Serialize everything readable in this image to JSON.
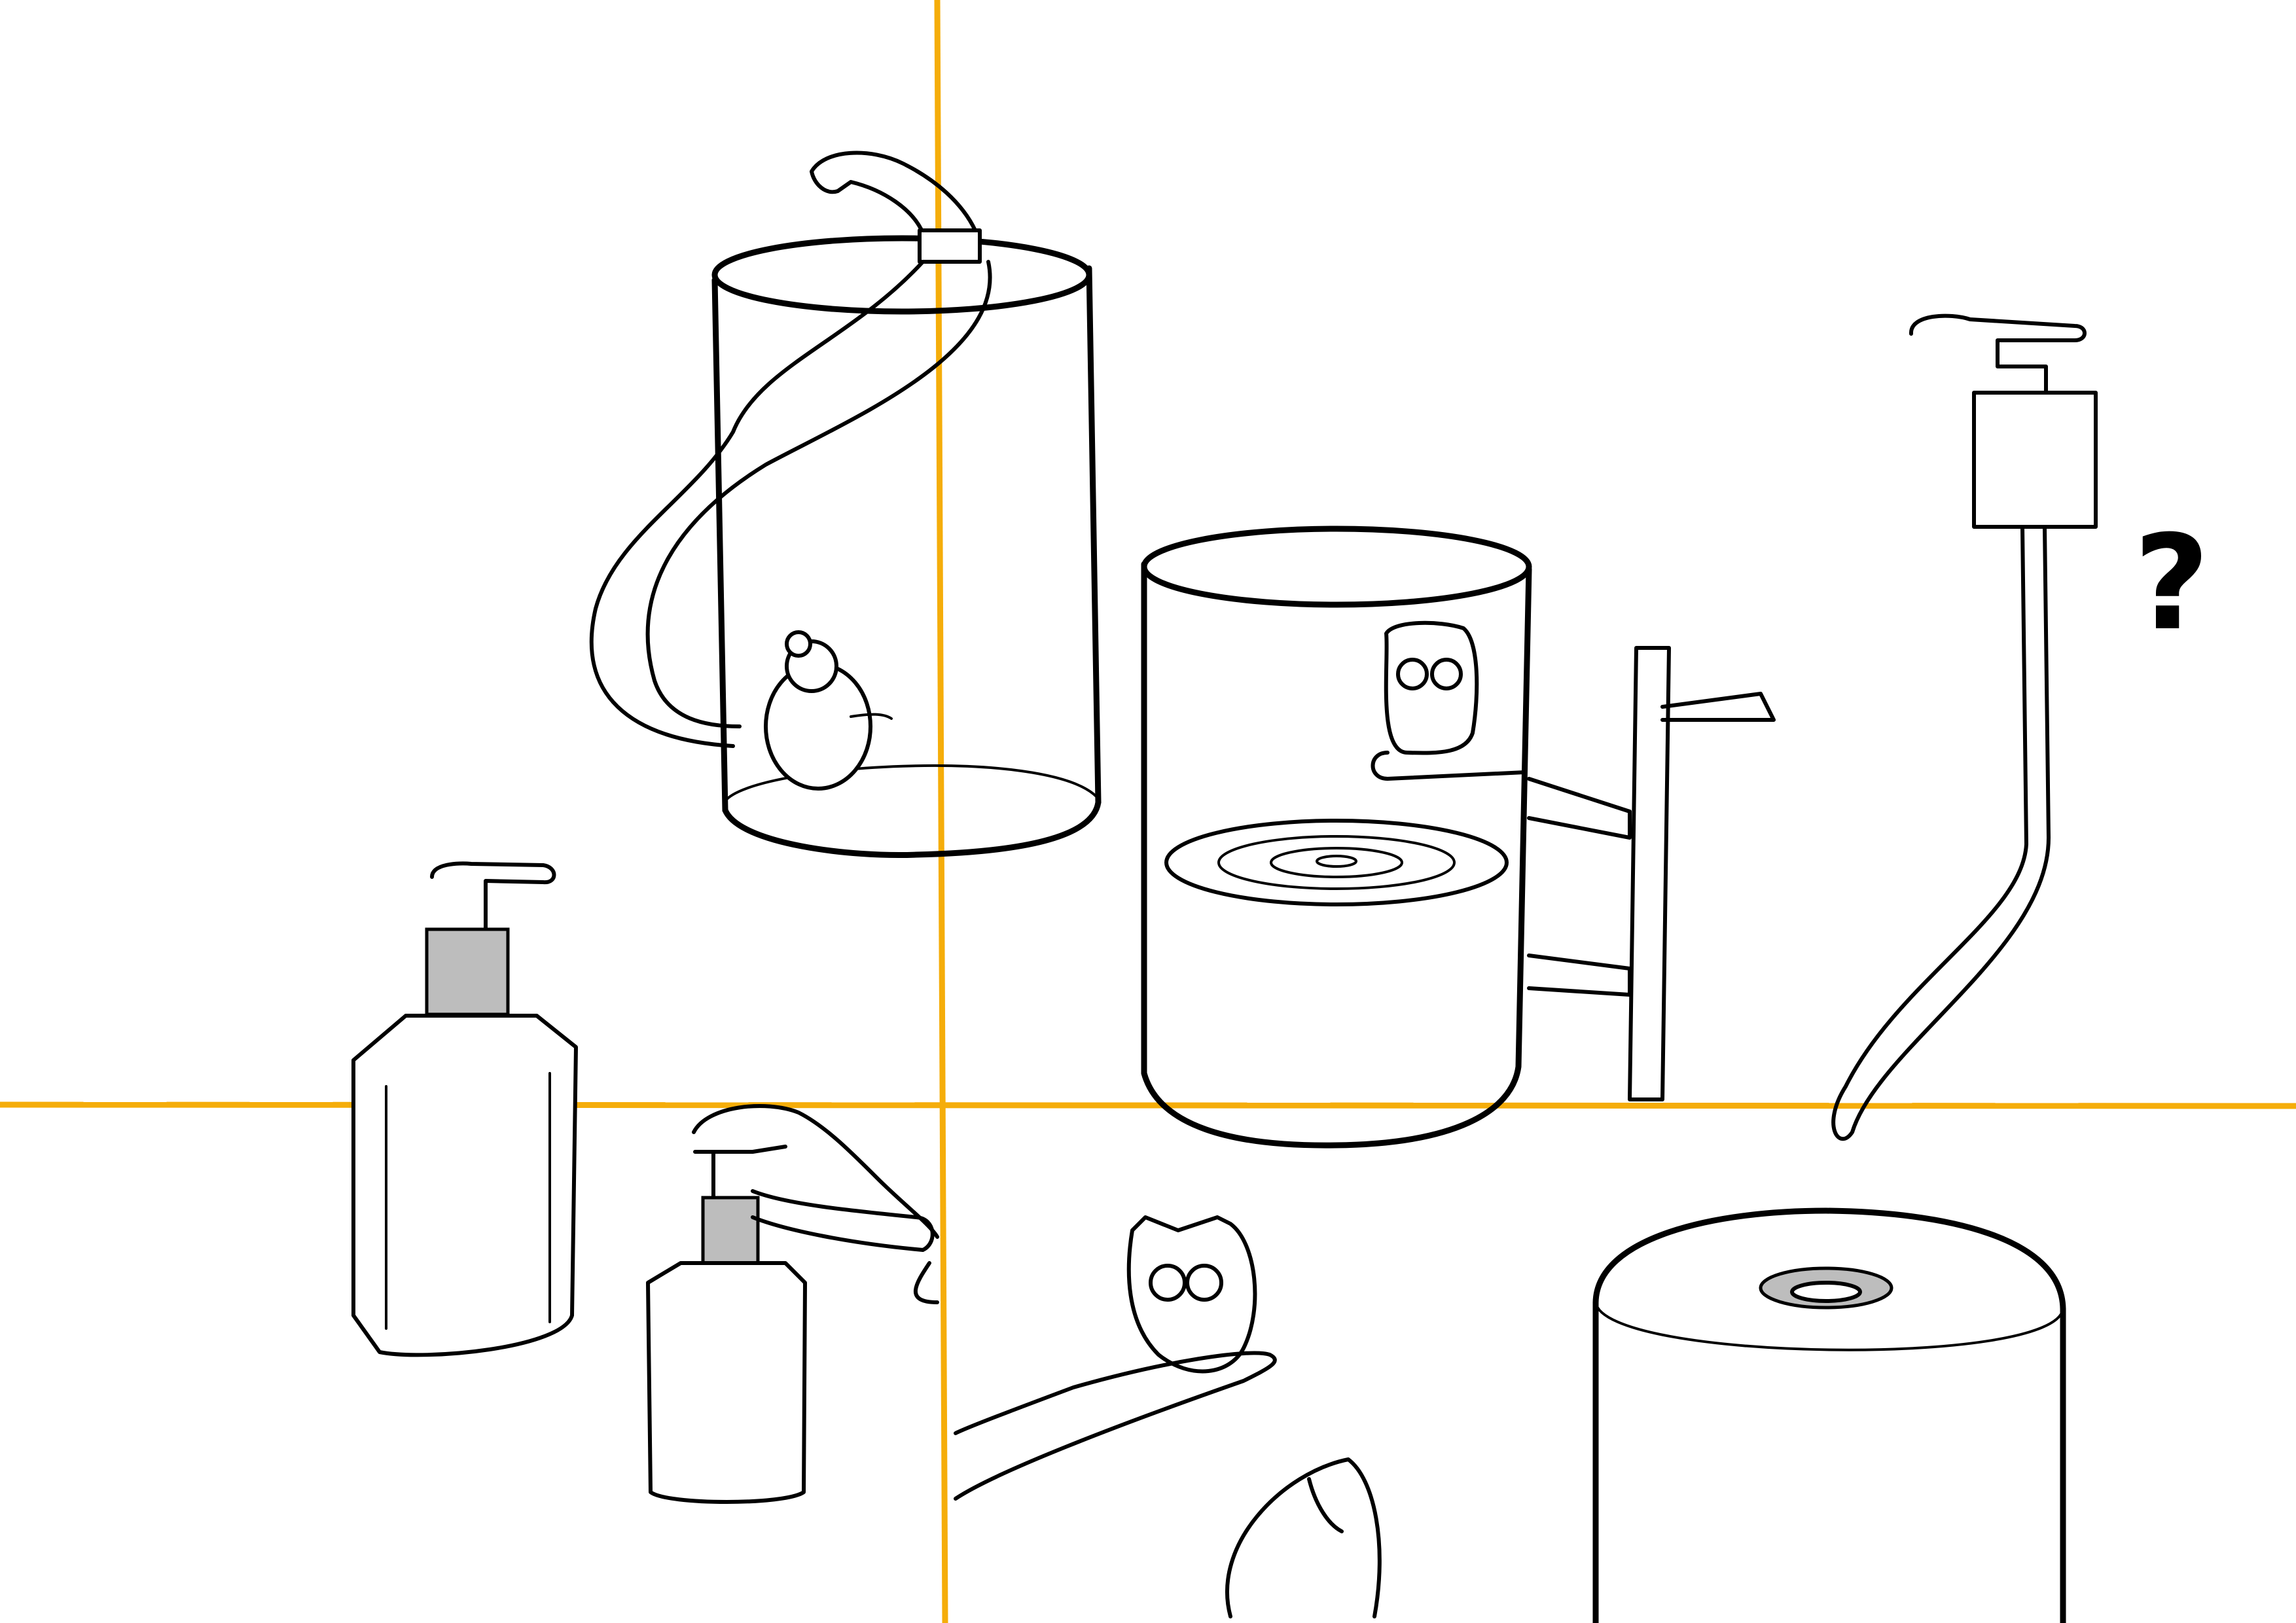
{
  "annotation": {
    "question_mark": "?"
  },
  "colors": {
    "grid_lines": "#f5ad0a",
    "ink": "#000000",
    "background": "#ffffff"
  }
}
